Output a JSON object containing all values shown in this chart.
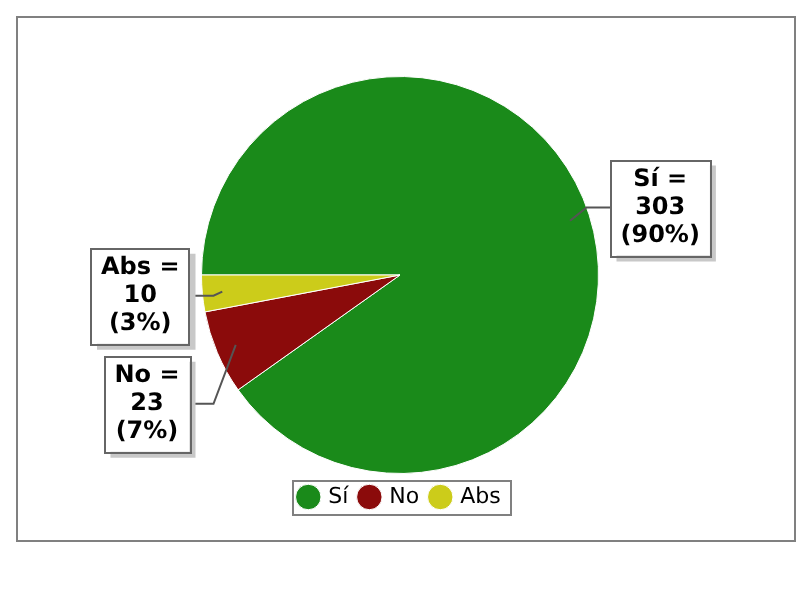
{
  "chart_data": {
    "type": "pie",
    "categories": [
      "Sí",
      "No",
      "Abs"
    ],
    "values": [
      303,
      23,
      10
    ],
    "colors": [
      "#1a8a1a",
      "#8b0b0b",
      "#cccc1a"
    ],
    "value_labels": [
      "Sí =\n303\n(90%)",
      "No =\n23\n(7%)",
      "Abs =\n10\n(3%)"
    ],
    "legend": "bottom"
  }
}
